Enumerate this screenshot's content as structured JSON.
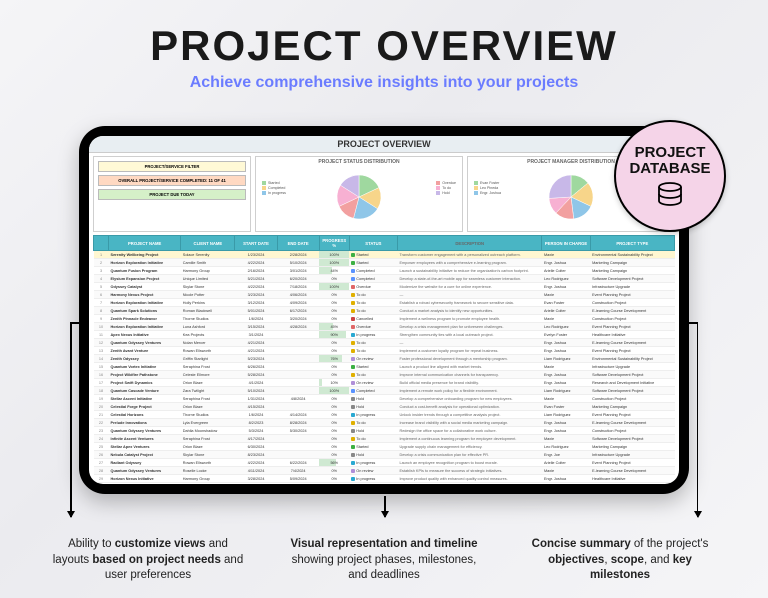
{
  "heading": "PROJECT OVERVIEW",
  "subheading": "Achieve comprehensive insights into your projects",
  "screen_title": "PROJECT OVERVIEW",
  "badge": {
    "line1": "PROJECT",
    "line2": "DATABASE"
  },
  "left_panel": {
    "bar1": "PROJECT/SERVICE FILTER",
    "bar2": "OVERALL PROJECT/SERVICE COMPLETED: 11 OF 41",
    "bar3": "PROJECT DUE TODAY"
  },
  "chart1": {
    "title": "PROJECT STATUS DISTRIBUTION",
    "slices": [
      {
        "label": "Started",
        "color": "#9fd89f",
        "value": 18
      },
      {
        "label": "Completed",
        "color": "#f7d58a",
        "value": 16
      },
      {
        "label": "In progress",
        "color": "#8fc6e8",
        "value": 20
      },
      {
        "label": "Overdue",
        "color": "#f2a0a0",
        "value": 14
      },
      {
        "label": "To do",
        "color": "#f7b0d2",
        "value": 16
      },
      {
        "label": "Hold",
        "color": "#c8b8e8",
        "value": 16
      }
    ]
  },
  "chart2": {
    "title": "PROJECT MANAGER DISTRIBUTION",
    "slices": [
      {
        "label": "Evan Foster",
        "color": "#9fd89f",
        "value": 14
      },
      {
        "label": "Leo Pineda",
        "color": "#f7d58a",
        "value": 18
      },
      {
        "label": "Engr. Joshua",
        "color": "#8fc6e8",
        "value": 16
      },
      {
        "label": "Arielle Colter",
        "color": "#f2a0a0",
        "value": 14
      },
      {
        "label": "Maxie",
        "color": "#f7b0d2",
        "value": 12
      },
      {
        "label": "Others",
        "color": "#c8b8e8",
        "value": 26
      }
    ]
  },
  "columns": [
    "",
    "PROJECT NAME",
    "CLIENT NAME",
    "START DATE",
    "END DATE",
    "PROGRESS %",
    "STATUS",
    "DESCRIPTION",
    "PERSON IN CHARGE",
    "PROJECT TYPE"
  ],
  "status_colors": {
    "Started": "#3cb043",
    "Completed": "#5a93ff",
    "In progress": "#2aa9d2",
    "Overdue": "#e06666",
    "To do": "#e0b000",
    "On review": "#b08fd8",
    "Hold": "#888888",
    "Cancelled": "#cc4444"
  },
  "rows": [
    {
      "i": 1,
      "hl": true,
      "p": "Serenity Wellbeing Project",
      "c": "Solace Serenity",
      "s": "1/23/2024",
      "e": "2/28/2024",
      "pr": 100,
      "st": "Started",
      "d": "Transform customer engagement with a personalized outreach platform.",
      "pc": "Maxie",
      "t": "Environmental Sustainability Project"
    },
    {
      "i": 2,
      "p": "Horizon Exploration Initiative",
      "c": "Camille Smith",
      "s": "4/22/2024",
      "e": "5/10/2024",
      "pr": 100,
      "st": "Started",
      "d": "Empower employees with a comprehensive e-learning program.",
      "pc": "Engr. Joshua",
      "t": "Marketing Campaign"
    },
    {
      "i": 3,
      "p": "Quantum Fusion Program",
      "c": "Harmony Group",
      "s": "2/16/2024",
      "e": "3/01/2024",
      "pr": 44,
      "st": "Completed",
      "d": "Launch a sustainability initiative to reduce the organization's carbon footprint.",
      "pc": "Arielle Colter",
      "t": "Marketing Campaign"
    },
    {
      "i": 4,
      "p": "Elysium Expansion Project",
      "c": "Unique Limited",
      "s": "5/21/2024",
      "e": "6/20/2024",
      "pr": 0,
      "st": "Completed",
      "d": "Develop a state-of-the-art mobile app for seamless customer interaction.",
      "pc": "Leo Rodriguez",
      "t": "Software Development Project"
    },
    {
      "i": 5,
      "p": "Odyssey Catalyst",
      "c": "Skylar Stone",
      "s": "4/22/2024",
      "e": "7/18/2024",
      "pr": 100,
      "st": "Overdue",
      "d": "Modernize the website for a cure for online experience.",
      "pc": "Engr. Joshua",
      "t": "Infrastructure Upgrade"
    },
    {
      "i": 6,
      "p": "Harmony Nexus Project",
      "c": "Nicole Potter",
      "s": "3/23/2024",
      "e": "4/06/2024",
      "pr": 0,
      "st": "To do",
      "d": "—",
      "pc": "Maxie",
      "t": "Event Planning Project"
    },
    {
      "i": 7,
      "p": "Horizon Exploration Initiative",
      "c": "Holly Perkins",
      "s": "3/12/2024",
      "e": "4/09/2024",
      "pr": 0,
      "st": "To do",
      "d": "Establish a robust cybersecurity framework to secure sensitive data.",
      "pc": "Evan Foster",
      "t": "Construction Project"
    },
    {
      "i": 8,
      "p": "Quantum Spark Solutions",
      "c": "Roman Blackwell",
      "s": "5/01/2024",
      "e": "6/17/2024",
      "pr": 0,
      "st": "To do",
      "d": "Conduct a market analysis to identify new opportunities.",
      "pc": "Arielle Colter",
      "t": "E-learning Course Development"
    },
    {
      "i": 9,
      "p": "Zenith Pinnacle Endeavor",
      "c": "Thorne Studios",
      "s": "1/6/2024",
      "e": "3/20/2024",
      "pr": 0,
      "st": "Cancelled",
      "d": "Implement a wellness program to promote employee health.",
      "pc": "Maxie",
      "t": "Construction Project"
    },
    {
      "i": 10,
      "p": "Horizon Exploration Initiative",
      "c": "Luna Ashford",
      "s": "3/15/2024",
      "e": "4/28/2024",
      "pr": 45,
      "st": "Overdue",
      "d": "Develop a crisis management plan for unforeseen challenges.",
      "pc": "Leo Rodriguez",
      "t": "Event Planning Project"
    },
    {
      "i": 11,
      "p": "Apex Nexus Initiative",
      "c": "Kea Projects",
      "s": "3/1/2024",
      "e": "",
      "pr": 90,
      "st": "In progress",
      "d": "Strengthen community ties with a local outreach project.",
      "pc": "Evelyn Foster",
      "t": "Healthcare Initiative"
    },
    {
      "i": 12,
      "p": "Quantum Odyssey Ventures",
      "c": "Nolan Mercer",
      "s": "4/21/2024",
      "e": "",
      "pr": 0,
      "st": "To do",
      "d": "—",
      "pc": "Engr. Joshua",
      "t": "E-learning Course Development"
    },
    {
      "i": 13,
      "p": "Zenith Avant Venture",
      "c": "Rowan Ellsworth",
      "s": "4/21/2024",
      "e": "",
      "pr": 0,
      "st": "To do",
      "d": "Implement a customer loyalty program for repeat business.",
      "pc": "Engr. Joshua",
      "t": "Event Planning Project"
    },
    {
      "i": 14,
      "p": "Zenith Odyssey",
      "c": "Griffin Starlight",
      "s": "5/23/2024",
      "e": "",
      "pr": 76,
      "st": "On review",
      "d": "Foster professional development through a mentorship program.",
      "pc": "Liam Rodriguez",
      "t": "Environmental Sustainability Project"
    },
    {
      "i": 15,
      "p": "Quantum Vortex Initiative",
      "c": "Seraphina Frost",
      "s": "6/26/2024",
      "e": "",
      "pr": 0,
      "st": "Started",
      "d": "Launch a product line aligned with market trends.",
      "pc": "Maxie",
      "t": "Infrastructure Upgrade"
    },
    {
      "i": 16,
      "p": "Project Wildfire Pathstone",
      "c": "Celeste Ellmore",
      "s": "5/28/2024",
      "e": "",
      "pr": 0,
      "st": "To do",
      "d": "Improve internal communication channels for transparency.",
      "pc": "Engr. Joshua",
      "t": "Software Development Project"
    },
    {
      "i": 17,
      "p": "Project Swift Dynamics",
      "c": "Orion Blaze",
      "s": "4/1/2024",
      "e": "",
      "pr": 10,
      "st": "On review",
      "d": "Build official media presence for brand visibility.",
      "pc": "Engr. Joshua",
      "t": "Research and Development Initiative"
    },
    {
      "i": 18,
      "p": "Quantum Cascade Venture",
      "c": "Zara Twilight",
      "s": "5/10/2024",
      "e": "",
      "pr": 100,
      "st": "Completed",
      "d": "Implement a remote work policy for a flexible environment.",
      "pc": "Liam Rodriguez",
      "t": "Software Development Project"
    },
    {
      "i": 19,
      "p": "Stellar Ascent Initiative",
      "c": "Seraphina Frost",
      "s": "1/31/2024",
      "e": "4/8/2024",
      "pr": 0,
      "st": "Hold",
      "d": "Develop a comprehensive onboarding program for new employees.",
      "pc": "Maxie",
      "t": "Construction Project"
    },
    {
      "i": 20,
      "p": "Celestial Forge Project",
      "c": "Orion Blaze",
      "s": "4/15/2024",
      "e": "",
      "pr": 0,
      "st": "Hold",
      "d": "Conduct a cost-benefit analysis for operational optimization.",
      "pc": "Evan Foster",
      "t": "Marketing Campaign"
    },
    {
      "i": 21,
      "p": "Celestial Horizons",
      "c": "Thorne Studios",
      "s": "1/6/2024",
      "e": "4/14/2024",
      "pr": 0,
      "st": "In progress",
      "d": "Unlock insider trends through a competitive analysis project.",
      "pc": "Liam Rodriguez",
      "t": "Event Planning Project"
    },
    {
      "i": 22,
      "p": "Prelude Innovations",
      "c": "Lyla Evergreen",
      "s": "8/2/2023",
      "e": "8/28/2024",
      "pr": 0,
      "st": "To do",
      "d": "Increase brand visibility with a social media marketing campaign.",
      "pc": "Engr. Joshua",
      "t": "E-learning Course Development"
    },
    {
      "i": 23,
      "p": "Quantum Odyssey Ventures",
      "c": "Dahlia Moonshadow",
      "s": "5/3/2024",
      "e": "5/30/2024",
      "pr": 0,
      "st": "Hold",
      "d": "Redesign the office space for a collaborative work culture.",
      "pc": "Engr. Joshua",
      "t": "Construction Project"
    },
    {
      "i": 24,
      "p": "Infinite Ascent Ventures",
      "c": "Seraphina Frost",
      "s": "4/17/2024",
      "e": "",
      "pr": 0,
      "st": "To do",
      "d": "Implement a continuous learning program for employee development.",
      "pc": "Maxie",
      "t": "Software Development Project"
    },
    {
      "i": 25,
      "p": "Stellar Apex Ventures",
      "c": "Orion Blaze",
      "s": "6/30/2024",
      "e": "",
      "pr": 0,
      "st": "Started",
      "d": "Upgrade supply chain management for efficiency.",
      "pc": "Leo Rodriguez",
      "t": "Marketing Campaign"
    },
    {
      "i": 26,
      "p": "Nebula Catalyst Project",
      "c": "Skylar Stone",
      "s": "8/23/2024",
      "e": "",
      "pr": 0,
      "st": "Hold",
      "d": "Develop a crisis communication plan for effective PR.",
      "pc": "Engr. Joe",
      "t": "Infrastructure Upgrade"
    },
    {
      "i": 27,
      "p": "Radiant Odyssey",
      "c": "Rowan Ellsworth",
      "s": "4/22/2024",
      "e": "6/22/2024",
      "pr": 56,
      "st": "In progress",
      "d": "Launch an employee recognition program to boost morale.",
      "pc": "Arielle Colter",
      "t": "Event Planning Project"
    },
    {
      "i": 28,
      "p": "Quantum Odyssey Ventures",
      "c": "Roselle Locke",
      "s": "4/11/2024",
      "e": "7/4/2024",
      "pr": 0,
      "st": "On review",
      "d": "Establish KPIs to measure the success of strategic initiatives.",
      "pc": "Maxie",
      "t": "E-learning Course Development"
    },
    {
      "i": 29,
      "p": "Horizon Nexus Initiative",
      "c": "Harmony Group",
      "s": "3/28/2024",
      "e": "5/09/2024",
      "pr": 0,
      "st": "In progress",
      "d": "Improve product quality with enhanced quality control measures.",
      "pc": "Engr. Joshua",
      "t": "Healthcare Initiative"
    },
    {
      "i": 30,
      "p": "Zenith Pulse",
      "c": "Clara James",
      "s": "1/21/2024",
      "e": "5/24/2024",
      "pr": 0,
      "st": "In progress",
      "d": "Modernize the company image with a rebranding campaign.",
      "pc": "Evelyn Foster",
      "t": "Environmental Sustainability Project"
    }
  ],
  "callouts": [
    {
      "pre": "Ability to ",
      "b1": "customize views",
      "mid": " and layouts ",
      "b2": "based on project needs",
      "post": " and user preferences"
    },
    {
      "b1": "Visual representation and timeline",
      "post": " showing project phases, milestones, and deadlines"
    },
    {
      "pre": "Concise summary",
      "mid": " of the project's ",
      "b1": "objectives",
      "mid2": ", ",
      "b2": "scope",
      "mid3": ", and ",
      "b3": "key milestones"
    }
  ]
}
